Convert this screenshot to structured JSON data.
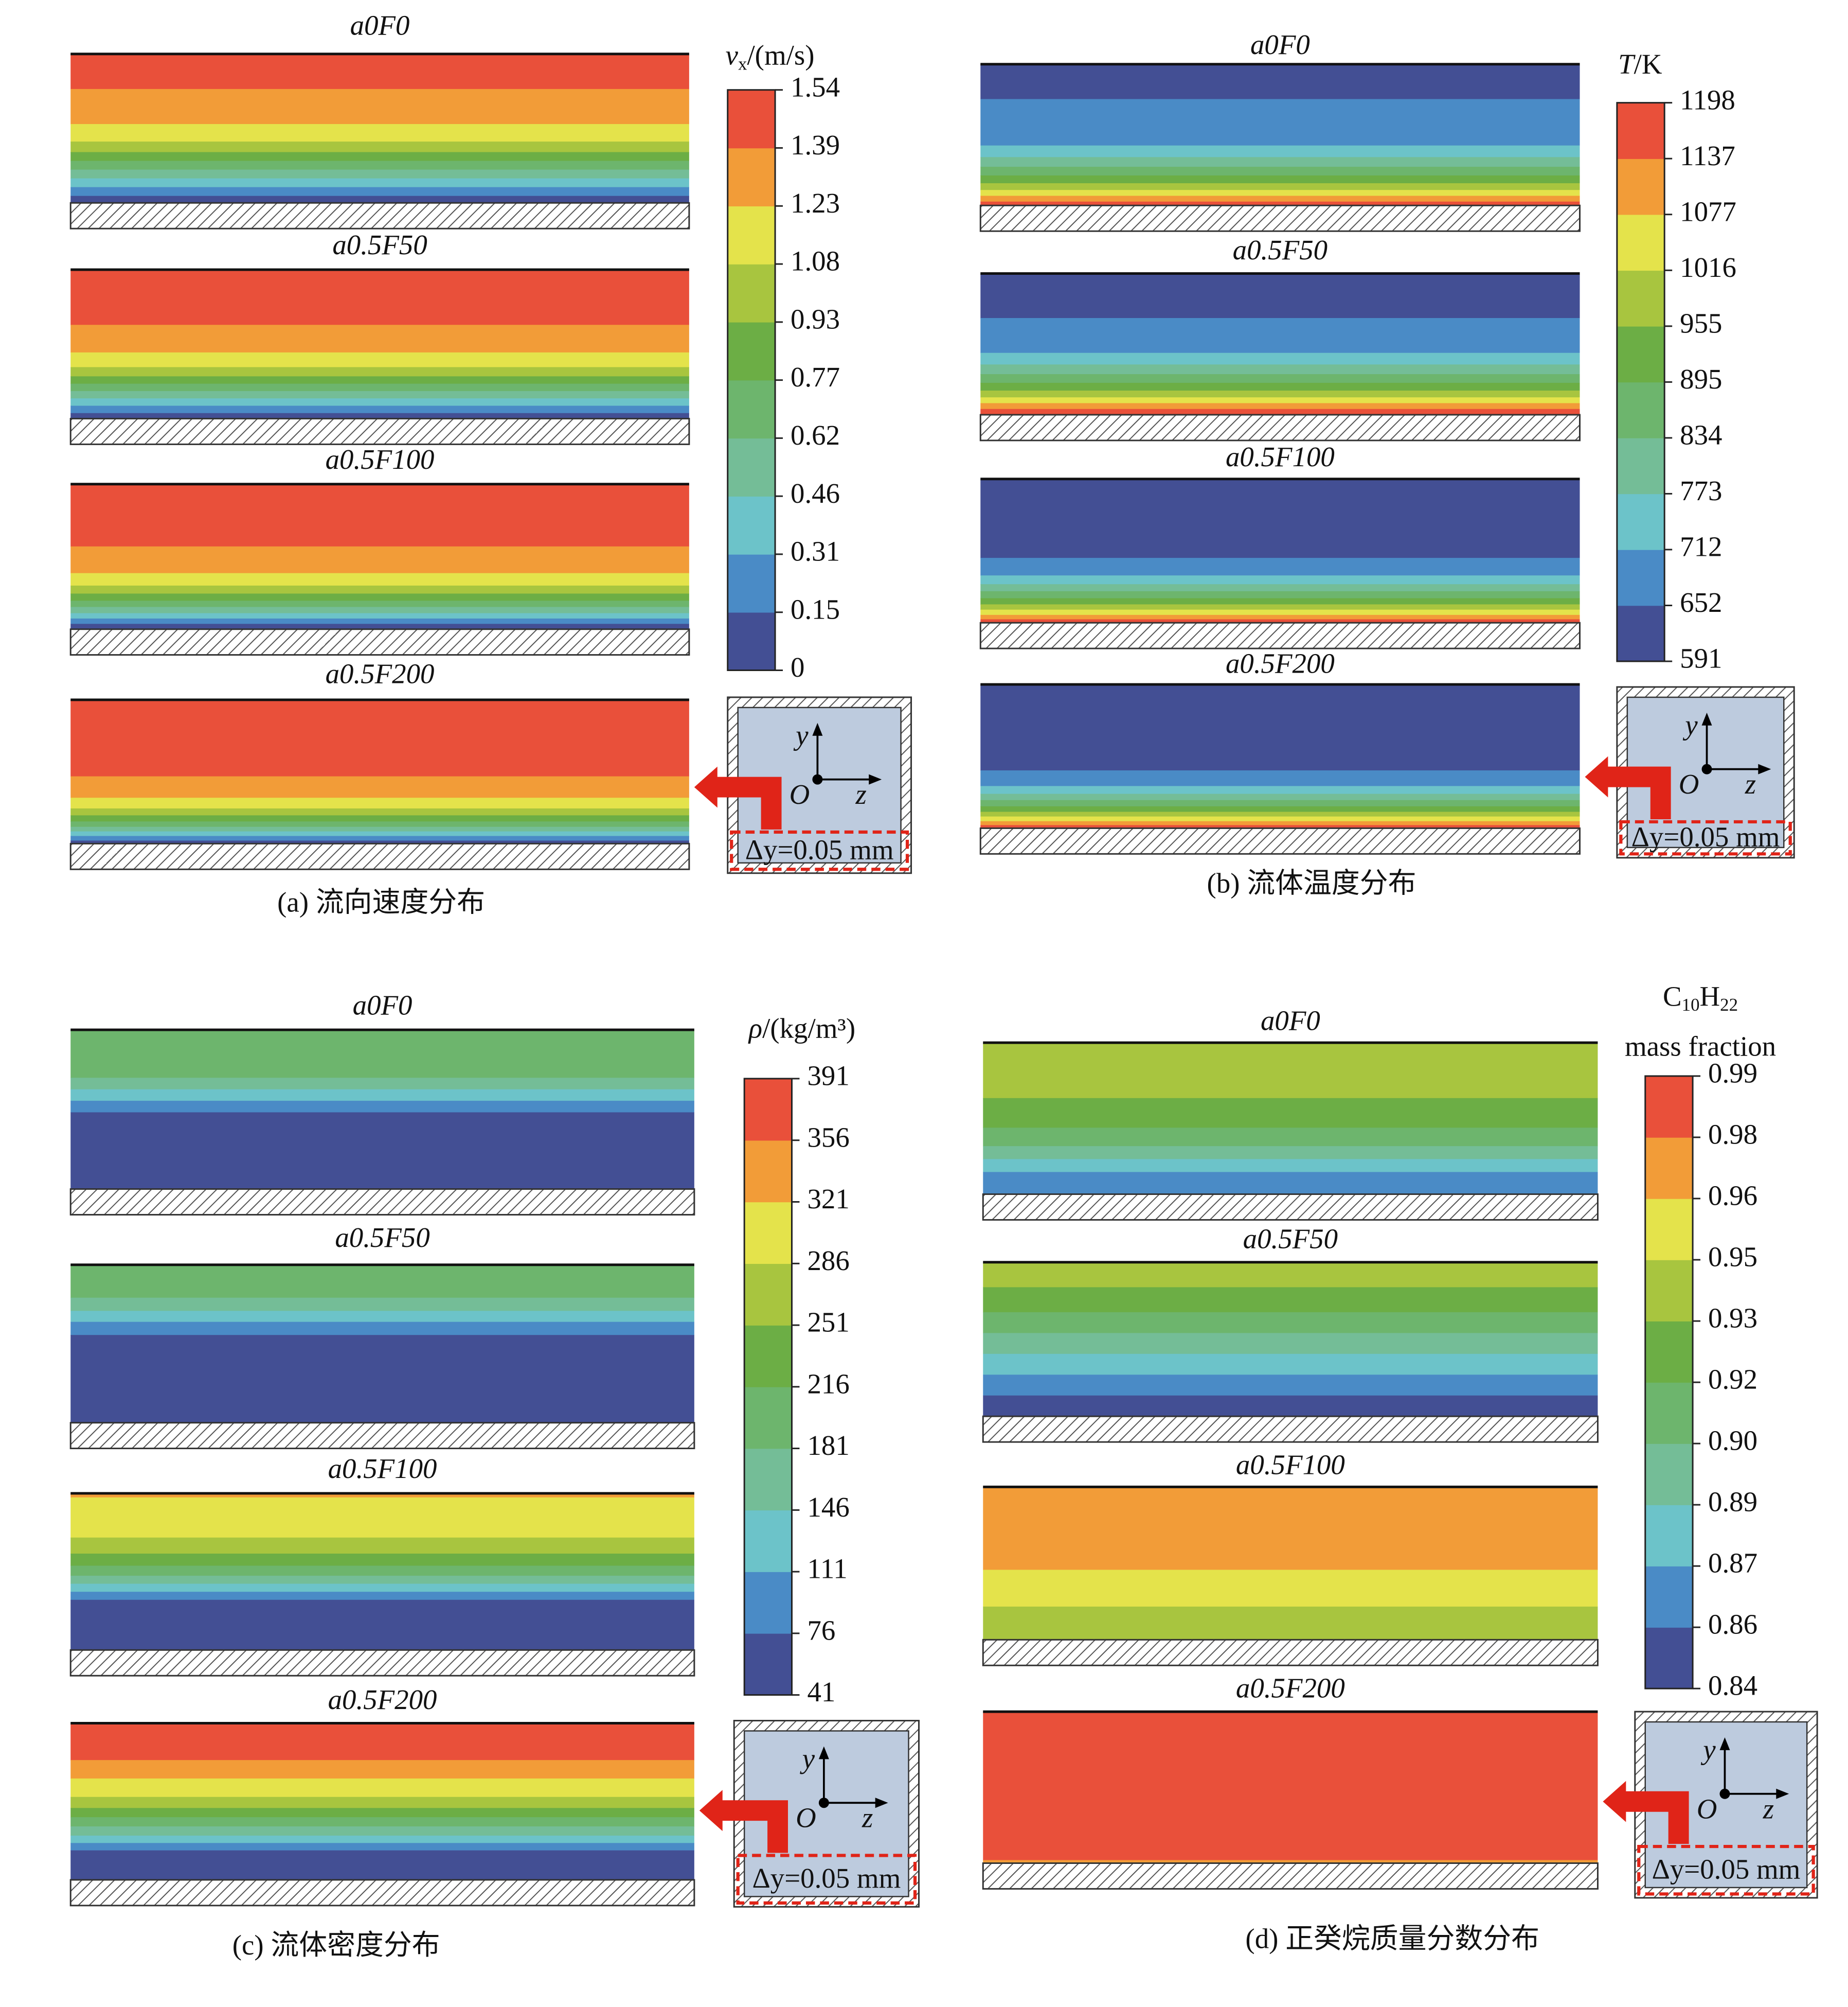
{
  "panels": [
    {
      "caption": "(a) 流向速度分布",
      "colorbar": {
        "title": [
          [
            {
              "text": "v",
              "style": "italic"
            },
            {
              "text": "x",
              "style": "sub"
            },
            {
              "text": "/(m/s)",
              "style": "normal"
            }
          ]
        ],
        "ticks": [
          "0",
          "0.15",
          "0.31",
          "0.46",
          "0.62",
          "0.77",
          "0.93",
          "1.08",
          "1.23",
          "1.39",
          "1.54"
        ]
      },
      "cases": [
        "a0F0",
        "a0.5F50",
        "a0.5F100",
        "a0.5F200"
      ],
      "inset": {
        "y": "y",
        "origin": "O",
        "z": "z",
        "note": "Δy=0.05 mm"
      }
    },
    {
      "caption": "(b) 流体温度分布",
      "colorbar": {
        "title": [
          [
            {
              "text": "T",
              "style": "italic"
            },
            {
              "text": "/K",
              "style": "normal"
            }
          ]
        ],
        "ticks": [
          "591",
          "652",
          "712",
          "773",
          "834",
          "895",
          "955",
          "1016",
          "1077",
          "1137",
          "1198"
        ]
      },
      "cases": [
        "a0F0",
        "a0.5F50",
        "a0.5F100",
        "a0.5F200"
      ],
      "inset": {
        "y": "y",
        "origin": "O",
        "z": "z",
        "note": "Δy=0.05 mm"
      }
    },
    {
      "caption": "(c) 流体密度分布",
      "colorbar": {
        "title": [
          [
            {
              "text": "ρ",
              "style": "italic"
            },
            {
              "text": "/(kg/m³)",
              "style": "normal"
            }
          ]
        ],
        "ticks": [
          "41",
          "76",
          "111",
          "146",
          "181",
          "216",
          "251",
          "286",
          "321",
          "356",
          "391"
        ]
      },
      "cases": [
        "a0F0",
        "a0.5F50",
        "a0.5F100",
        "a0.5F200"
      ],
      "inset": {
        "y": "y",
        "origin": "O",
        "z": "z",
        "note": "Δy=0.05 mm"
      }
    },
    {
      "caption": "(d) 正癸烷质量分数分布",
      "colorbar": {
        "title": [
          [
            {
              "text": "C",
              "style": "normal"
            },
            {
              "text": "10",
              "style": "sub"
            },
            {
              "text": "H",
              "style": "normal"
            },
            {
              "text": "22",
              "style": "sub"
            }
          ],
          [
            {
              "text": "mass fraction",
              "style": "normal"
            }
          ]
        ],
        "ticks": [
          "0.84",
          "0.86",
          "0.87",
          "0.89",
          "0.90",
          "0.92",
          "0.93",
          "0.95",
          "0.96",
          "0.98",
          "0.99"
        ]
      },
      "cases": [
        "a0F0",
        "a0.5F50",
        "a0.5F100",
        "a0.5F200"
      ],
      "inset": {
        "y": "y",
        "origin": "O",
        "z": "z",
        "note": "Δy=0.05 mm"
      }
    }
  ]
}
